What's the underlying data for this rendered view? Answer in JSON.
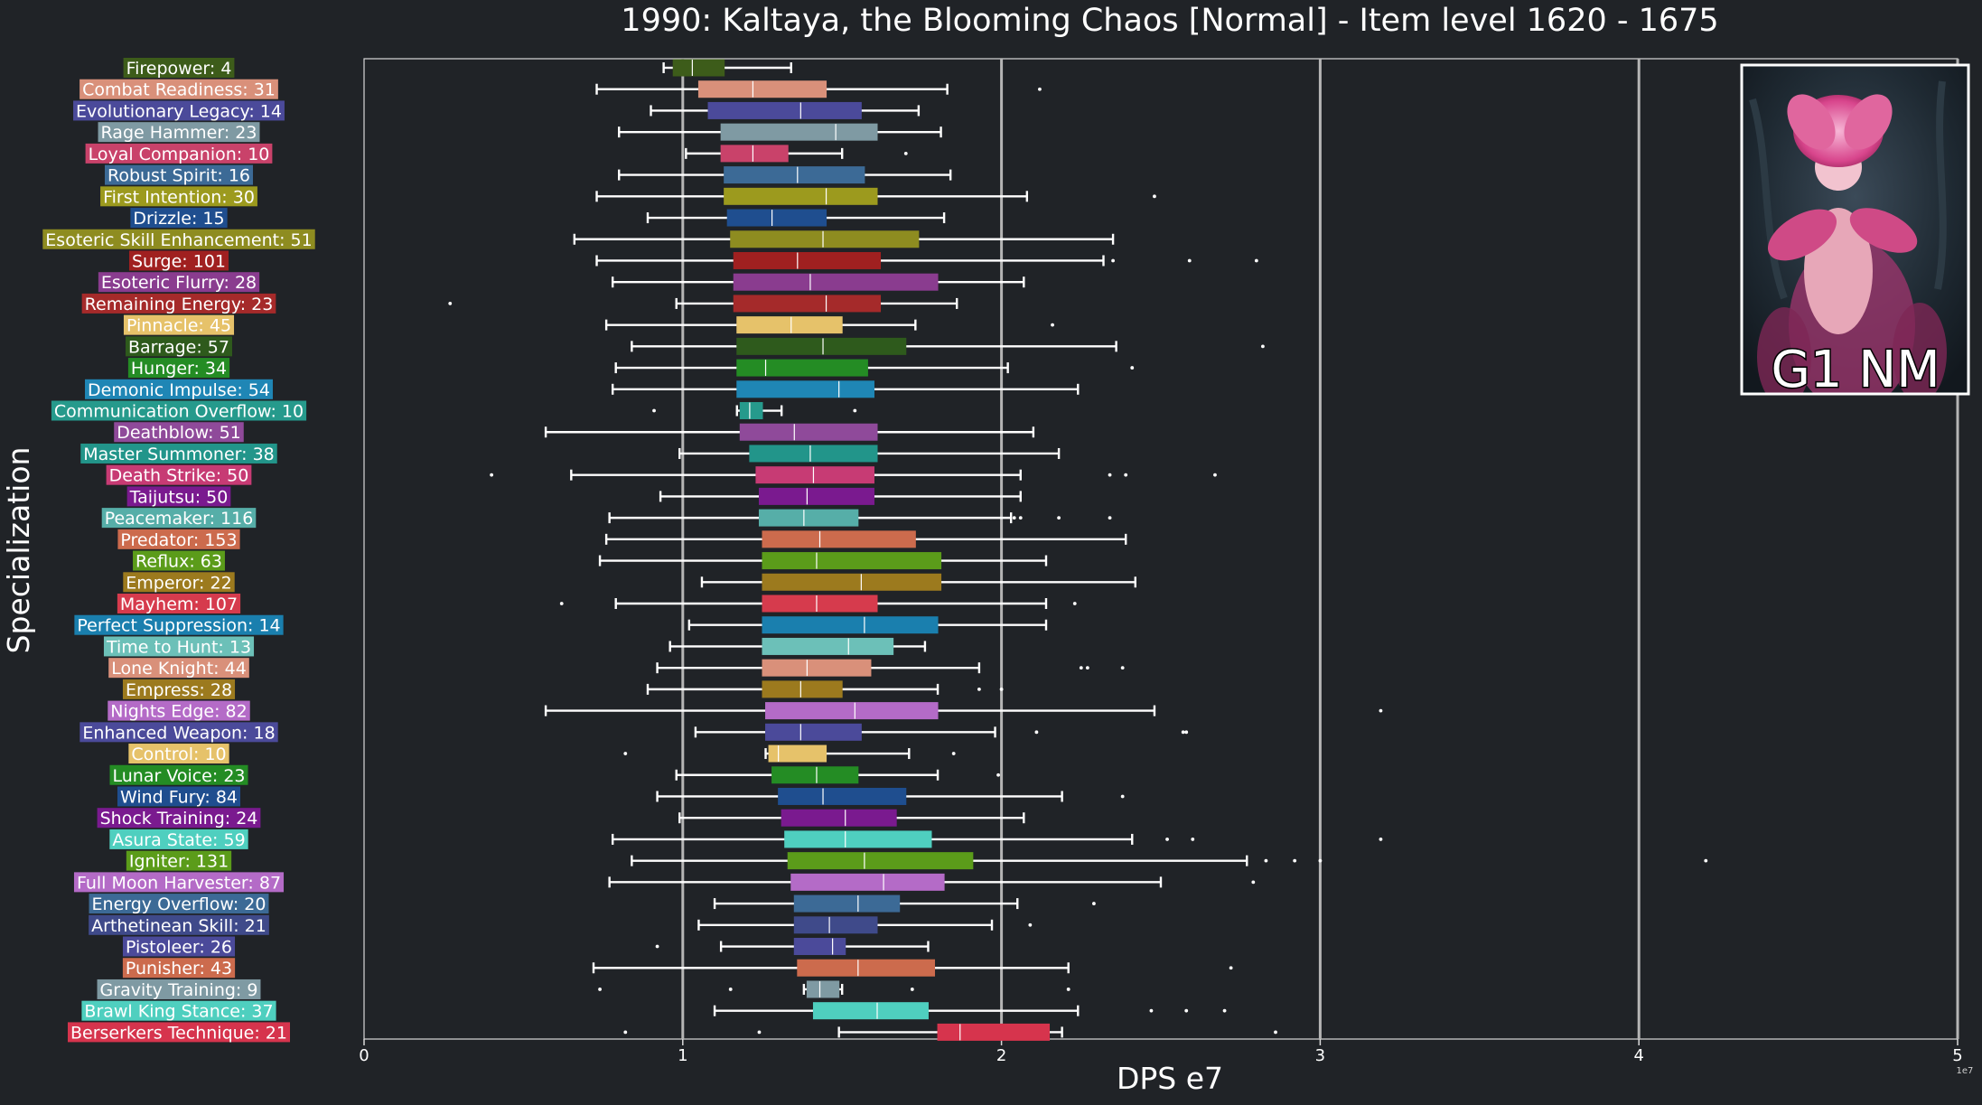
{
  "chart_data": {
    "type": "boxplot",
    "title": "1990: Kaltaya, the Blooming Chaos [Normal] - Item level 1620 - 1675",
    "xlabel": "DPS e7",
    "ylabel": "Specialization",
    "x_scale_note": "1e7",
    "xlim": [
      0,
      5.0
    ],
    "xticks": [
      {
        "value": 0,
        "label": "0"
      },
      {
        "value": 1,
        "label": "1"
      },
      {
        "value": 2,
        "label": "2"
      },
      {
        "value": 3,
        "label": "3"
      },
      {
        "value": 4,
        "label": "4"
      },
      {
        "value": 5,
        "label": "5"
      }
    ],
    "grid": "vertical",
    "legend": "none",
    "inset": {
      "caption": "G1 NM",
      "position": "top-right"
    },
    "series": [
      {
        "label": "Firepower: 4",
        "color": "#3d5c1a",
        "whislo": 0.94,
        "q1": 0.97,
        "med": 1.03,
        "q3": 1.13,
        "whishi": 1.34,
        "fliers": []
      },
      {
        "label": "Combat Readiness: 31",
        "color": "#d9907a",
        "whislo": 0.73,
        "q1": 1.05,
        "med": 1.22,
        "q3": 1.45,
        "whishi": 1.83,
        "fliers": [
          2.12
        ]
      },
      {
        "label": "Evolutionary Legacy: 14",
        "color": "#4b4a9a",
        "whislo": 0.9,
        "q1": 1.08,
        "med": 1.37,
        "q3": 1.56,
        "whishi": 1.74,
        "fliers": []
      },
      {
        "label": "Rage Hammer: 23",
        "color": "#7f9aa3",
        "whislo": 0.8,
        "q1": 1.12,
        "med": 1.48,
        "q3": 1.61,
        "whishi": 1.81,
        "fliers": []
      },
      {
        "label": "Loyal Companion: 10",
        "color": "#c9426a",
        "whislo": 1.01,
        "q1": 1.12,
        "med": 1.22,
        "q3": 1.33,
        "whishi": 1.5,
        "fliers": [
          1.7
        ]
      },
      {
        "label": "Robust Spirit: 16",
        "color": "#3c6a96",
        "whislo": 0.8,
        "q1": 1.13,
        "med": 1.36,
        "q3": 1.57,
        "whishi": 1.84,
        "fliers": []
      },
      {
        "label": "First Intention: 30",
        "color": "#9c9a1e",
        "whislo": 0.73,
        "q1": 1.13,
        "med": 1.45,
        "q3": 1.61,
        "whishi": 2.08,
        "fliers": [
          2.48
        ]
      },
      {
        "label": "Drizzle: 15",
        "color": "#1f4e8f",
        "whislo": 0.89,
        "q1": 1.14,
        "med": 1.28,
        "q3": 1.45,
        "whishi": 1.82,
        "fliers": []
      },
      {
        "label": "Esoteric Skill Enhancement: 51",
        "color": "#8e8c20",
        "whislo": 0.66,
        "q1": 1.15,
        "med": 1.44,
        "q3": 1.74,
        "whishi": 2.35,
        "fliers": []
      },
      {
        "label": "Surge: 101",
        "color": "#a02020",
        "whislo": 0.73,
        "q1": 1.16,
        "med": 1.36,
        "q3": 1.62,
        "whishi": 2.32,
        "fliers": [
          2.35,
          2.59,
          2.8
        ]
      },
      {
        "label": "Esoteric Flurry: 28",
        "color": "#8a3c8f",
        "whislo": 0.78,
        "q1": 1.16,
        "med": 1.4,
        "q3": 1.8,
        "whishi": 2.07,
        "fliers": []
      },
      {
        "label": "Remaining Energy: 23",
        "color": "#a52a2a",
        "whislo": 0.98,
        "q1": 1.16,
        "med": 1.45,
        "q3": 1.62,
        "whishi": 1.86,
        "fliers": [
          0.27
        ]
      },
      {
        "label": "Pinnacle: 45",
        "color": "#e6c26a",
        "whislo": 0.76,
        "q1": 1.17,
        "med": 1.34,
        "q3": 1.5,
        "whishi": 1.73,
        "fliers": [
          2.16
        ]
      },
      {
        "label": "Barrage: 57",
        "color": "#2e5a1c",
        "whislo": 0.84,
        "q1": 1.17,
        "med": 1.44,
        "q3": 1.7,
        "whishi": 2.36,
        "fliers": [
          2.82
        ]
      },
      {
        "label": "Hunger: 34",
        "color": "#248c24",
        "whislo": 0.79,
        "q1": 1.17,
        "med": 1.26,
        "q3": 1.58,
        "whishi": 2.02,
        "fliers": [
          2.41
        ]
      },
      {
        "label": "Demonic Impulse: 54",
        "color": "#1f86b5",
        "whislo": 0.78,
        "q1": 1.17,
        "med": 1.49,
        "q3": 1.6,
        "whishi": 2.24,
        "fliers": []
      },
      {
        "label": "Communication Overflow: 10",
        "color": "#269a8c",
        "whislo": 1.17,
        "q1": 1.18,
        "med": 1.21,
        "q3": 1.25,
        "whishi": 1.31,
        "fliers": [
          0.91,
          1.54
        ]
      },
      {
        "label": "Deathblow: 51",
        "color": "#8f4a9a",
        "whislo": 0.57,
        "q1": 1.18,
        "med": 1.35,
        "q3": 1.61,
        "whishi": 2.1,
        "fliers": []
      },
      {
        "label": "Master Summoner: 38",
        "color": "#22958a",
        "whislo": 0.99,
        "q1": 1.21,
        "med": 1.4,
        "q3": 1.61,
        "whishi": 2.18,
        "fliers": []
      },
      {
        "label": "Death Strike: 50",
        "color": "#c73b74",
        "whislo": 0.65,
        "q1": 1.23,
        "med": 1.41,
        "q3": 1.6,
        "whishi": 2.06,
        "fliers": [
          0.4,
          2.34,
          2.39,
          2.67
        ]
      },
      {
        "label": "Taijutsu: 50",
        "color": "#7a1a8f",
        "whislo": 0.93,
        "q1": 1.24,
        "med": 1.39,
        "q3": 1.6,
        "whishi": 2.06,
        "fliers": []
      },
      {
        "label": "Peacemaker: 116",
        "color": "#56aea8",
        "whislo": 0.77,
        "q1": 1.24,
        "med": 1.38,
        "q3": 1.55,
        "whishi": 2.03,
        "fliers": [
          2.04,
          2.06,
          2.18,
          2.34
        ]
      },
      {
        "label": "Predator: 153",
        "color": "#cc6b4d",
        "whislo": 0.76,
        "q1": 1.25,
        "med": 1.43,
        "q3": 1.73,
        "whishi": 2.39,
        "fliers": []
      },
      {
        "label": "Reflux: 63",
        "color": "#5b9c1a",
        "whislo": 0.74,
        "q1": 1.25,
        "med": 1.42,
        "q3": 1.81,
        "whishi": 2.14,
        "fliers": []
      },
      {
        "label": "Emperor: 22",
        "color": "#9c7a1e",
        "whislo": 1.06,
        "q1": 1.25,
        "med": 1.56,
        "q3": 1.81,
        "whishi": 2.42,
        "fliers": []
      },
      {
        "label": "Mayhem: 107",
        "color": "#d63b4d",
        "whislo": 0.79,
        "q1": 1.25,
        "med": 1.42,
        "q3": 1.61,
        "whishi": 2.14,
        "fliers": [
          0.62,
          2.23
        ]
      },
      {
        "label": "Perfect Suppression: 14",
        "color": "#1a7fae",
        "whislo": 1.02,
        "q1": 1.25,
        "med": 1.57,
        "q3": 1.8,
        "whishi": 2.14,
        "fliers": []
      },
      {
        "label": "Time to Hunt: 13",
        "color": "#6cc0b8",
        "whislo": 0.96,
        "q1": 1.25,
        "med": 1.52,
        "q3": 1.66,
        "whishi": 1.76,
        "fliers": []
      },
      {
        "label": "Lone Knight: 44",
        "color": "#d9907a",
        "whislo": 0.92,
        "q1": 1.25,
        "med": 1.39,
        "q3": 1.59,
        "whishi": 1.93,
        "fliers": [
          2.25,
          2.27,
          2.38
        ]
      },
      {
        "label": "Empress: 28",
        "color": "#9c7a1e",
        "whislo": 0.89,
        "q1": 1.25,
        "med": 1.37,
        "q3": 1.5,
        "whishi": 1.8,
        "fliers": [
          1.93,
          2.0
        ]
      },
      {
        "label": "Nights Edge: 82",
        "color": "#b46bc7",
        "whislo": 0.57,
        "q1": 1.26,
        "med": 1.54,
        "q3": 1.8,
        "whishi": 2.48,
        "fliers": [
          3.19
        ]
      },
      {
        "label": "Enhanced Weapon: 18",
        "color": "#4b4a9a",
        "whislo": 1.04,
        "q1": 1.26,
        "med": 1.37,
        "q3": 1.56,
        "whishi": 1.98,
        "fliers": [
          2.11,
          2.57,
          2.58
        ]
      },
      {
        "label": "Control: 10",
        "color": "#e6c26a",
        "whislo": 1.26,
        "q1": 1.27,
        "med": 1.3,
        "q3": 1.45,
        "whishi": 1.71,
        "fliers": [
          0.82,
          1.85
        ]
      },
      {
        "label": "Lunar Voice: 23",
        "color": "#248c24",
        "whislo": 0.98,
        "q1": 1.28,
        "med": 1.42,
        "q3": 1.55,
        "whishi": 1.8,
        "fliers": [
          1.99
        ]
      },
      {
        "label": "Wind Fury: 84",
        "color": "#1f4e8f",
        "whislo": 0.92,
        "q1": 1.3,
        "med": 1.44,
        "q3": 1.7,
        "whishi": 2.19,
        "fliers": [
          2.38
        ]
      },
      {
        "label": "Shock Training: 24",
        "color": "#7a1a8f",
        "whislo": 0.99,
        "q1": 1.31,
        "med": 1.51,
        "q3": 1.67,
        "whishi": 2.07,
        "fliers": []
      },
      {
        "label": "Asura State: 59",
        "color": "#4fcfbf",
        "whislo": 0.78,
        "q1": 1.32,
        "med": 1.51,
        "q3": 1.78,
        "whishi": 2.41,
        "fliers": [
          2.52,
          2.6,
          3.19
        ]
      },
      {
        "label": "Igniter: 131",
        "color": "#5b9c1a",
        "whislo": 0.84,
        "q1": 1.33,
        "med": 1.57,
        "q3": 1.91,
        "whishi": 2.77,
        "fliers": [
          2.83,
          2.92,
          3.0,
          4.21
        ]
      },
      {
        "label": "Full Moon Harvester: 87",
        "color": "#b46bc7",
        "whislo": 0.77,
        "q1": 1.34,
        "med": 1.63,
        "q3": 1.82,
        "whishi": 2.5,
        "fliers": [
          2.79
        ]
      },
      {
        "label": "Energy Overflow: 20",
        "color": "#3c6a96",
        "whislo": 1.1,
        "q1": 1.35,
        "med": 1.55,
        "q3": 1.68,
        "whishi": 2.05,
        "fliers": [
          2.29
        ]
      },
      {
        "label": "Arthetinean Skill: 21",
        "color": "#3f4a8a",
        "whislo": 1.05,
        "q1": 1.35,
        "med": 1.46,
        "q3": 1.61,
        "whishi": 1.97,
        "fliers": [
          2.09
        ]
      },
      {
        "label": "Pistoleer: 26",
        "color": "#4b4a9a",
        "whislo": 1.12,
        "q1": 1.35,
        "med": 1.47,
        "q3": 1.51,
        "whishi": 1.77,
        "fliers": [
          0.92
        ]
      },
      {
        "label": "Punisher: 43",
        "color": "#cc6b4d",
        "whislo": 0.72,
        "q1": 1.36,
        "med": 1.55,
        "q3": 1.79,
        "whishi": 2.21,
        "fliers": [
          2.72
        ]
      },
      {
        "label": "Gravity Training: 9",
        "color": "#7f9aa3",
        "whislo": 1.38,
        "q1": 1.39,
        "med": 1.43,
        "q3": 1.49,
        "whishi": 1.5,
        "fliers": [
          0.74,
          1.15,
          1.72,
          2.21
        ]
      },
      {
        "label": "Brawl King Stance: 37",
        "color": "#4fcfbf",
        "whislo": 1.1,
        "q1": 1.41,
        "med": 1.61,
        "q3": 1.77,
        "whishi": 2.24,
        "fliers": [
          2.47,
          2.58,
          2.7
        ]
      },
      {
        "label": "Berserkers Technique: 21",
        "color": "#d6344d",
        "whislo": 1.49,
        "q1": 1.8,
        "med": 1.87,
        "q3": 2.15,
        "whishi": 2.19,
        "fliers": [
          0.82,
          1.24,
          2.86
        ]
      }
    ]
  }
}
